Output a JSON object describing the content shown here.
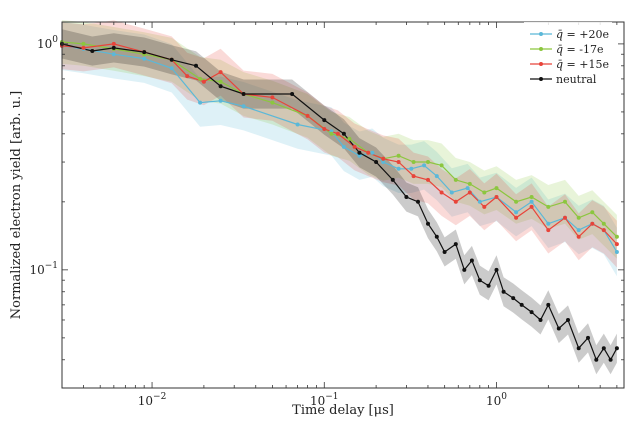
{
  "chart_data": {
    "type": "line",
    "title": "",
    "xlabel": "Time delay [μs]",
    "ylabel": "Normalized electron yield [arb. u.]",
    "xscale": "log",
    "yscale": "log",
    "xlim": [
      0.003,
      5.5
    ],
    "ylim": [
      0.03,
      1.25
    ],
    "grid": false,
    "legend": "top-right",
    "x_ticks": [
      {
        "value": 0.01,
        "base": "10",
        "exp": "−2"
      },
      {
        "value": 0.1,
        "base": "10",
        "exp": "−1"
      },
      {
        "value": 1,
        "base": "10",
        "exp": "0"
      }
    ],
    "y_ticks": [
      {
        "value": 0.1,
        "base": "10",
        "exp": "−1"
      },
      {
        "value": 1,
        "base": "10",
        "exp": "0"
      }
    ],
    "series": [
      {
        "name": "q̄ = +20e",
        "legend_label": {
          "symbol": "q̄",
          "text": " = +20e"
        },
        "color": "#5bb8d8",
        "band": 0.28,
        "x": [
          0.003,
          0.004,
          0.006,
          0.009,
          0.013,
          0.019,
          0.025,
          0.034,
          0.07,
          0.11,
          0.13,
          0.16,
          0.19,
          0.22,
          0.27,
          0.32,
          0.38,
          0.45,
          0.55,
          0.68,
          0.8,
          1.0,
          1.3,
          1.6,
          2.0,
          2.5,
          3.0,
          3.6,
          4.2,
          5.0
        ],
        "y": [
          0.98,
          0.95,
          0.9,
          0.86,
          0.78,
          0.55,
          0.56,
          0.53,
          0.44,
          0.41,
          0.35,
          0.32,
          0.33,
          0.3,
          0.28,
          0.28,
          0.29,
          0.26,
          0.22,
          0.23,
          0.2,
          0.21,
          0.18,
          0.2,
          0.16,
          0.17,
          0.15,
          0.16,
          0.15,
          0.12
        ]
      },
      {
        "name": "q̄ = -17e",
        "legend_label": {
          "symbol": "q̄",
          "text": " = -17e"
        },
        "color": "#8cc63f",
        "band": 0.25,
        "x": [
          0.003,
          0.004,
          0.006,
          0.009,
          0.013,
          0.019,
          0.025,
          0.034,
          0.05,
          0.08,
          0.11,
          0.14,
          0.18,
          0.22,
          0.27,
          0.33,
          0.4,
          0.48,
          0.58,
          0.7,
          0.85,
          1.0,
          1.3,
          1.6,
          2.0,
          2.5,
          3.0,
          3.6,
          4.2,
          5.0
        ],
        "y": [
          1.02,
          1.0,
          0.95,
          0.9,
          0.85,
          0.7,
          0.68,
          0.6,
          0.55,
          0.48,
          0.4,
          0.38,
          0.33,
          0.31,
          0.32,
          0.3,
          0.3,
          0.29,
          0.25,
          0.24,
          0.22,
          0.23,
          0.2,
          0.21,
          0.19,
          0.2,
          0.17,
          0.18,
          0.16,
          0.14
        ]
      },
      {
        "name": "q̄ = +15e",
        "legend_label": {
          "symbol": "q̄",
          "text": " = +15e"
        },
        "color": "#e8443a",
        "band": 0.27,
        "x": [
          0.003,
          0.004,
          0.006,
          0.009,
          0.013,
          0.016,
          0.02,
          0.025,
          0.034,
          0.05,
          0.08,
          0.1,
          0.12,
          0.15,
          0.18,
          0.22,
          0.27,
          0.33,
          0.4,
          0.48,
          0.58,
          0.7,
          0.85,
          1.0,
          1.3,
          1.6,
          2.0,
          2.5,
          3.0,
          3.6,
          4.2,
          5.0
        ],
        "y": [
          0.98,
          0.96,
          1.0,
          0.92,
          0.85,
          0.72,
          0.68,
          0.75,
          0.6,
          0.58,
          0.48,
          0.42,
          0.4,
          0.35,
          0.33,
          0.31,
          0.3,
          0.26,
          0.25,
          0.22,
          0.2,
          0.22,
          0.19,
          0.21,
          0.17,
          0.19,
          0.15,
          0.17,
          0.14,
          0.16,
          0.15,
          0.13
        ]
      },
      {
        "name": "neutral",
        "legend_label": {
          "symbol": "",
          "text": "neutral"
        },
        "color": "#111111",
        "band": 0.16,
        "x": [
          0.003,
          0.0045,
          0.006,
          0.009,
          0.013,
          0.018,
          0.025,
          0.034,
          0.065,
          0.1,
          0.13,
          0.16,
          0.2,
          0.25,
          0.3,
          0.35,
          0.4,
          0.45,
          0.5,
          0.58,
          0.65,
          0.72,
          0.8,
          0.9,
          1.0,
          1.1,
          1.25,
          1.4,
          1.6,
          1.8,
          2.0,
          2.3,
          2.6,
          3.0,
          3.4,
          3.8,
          4.2,
          4.6,
          5.0
        ],
        "y": [
          1.0,
          0.93,
          0.96,
          0.92,
          0.85,
          0.8,
          0.65,
          0.6,
          0.6,
          0.46,
          0.4,
          0.33,
          0.3,
          0.25,
          0.21,
          0.2,
          0.16,
          0.14,
          0.12,
          0.13,
          0.1,
          0.11,
          0.09,
          0.085,
          0.1,
          0.08,
          0.075,
          0.07,
          0.065,
          0.06,
          0.07,
          0.055,
          0.06,
          0.045,
          0.05,
          0.04,
          0.045,
          0.04,
          0.045
        ]
      }
    ]
  }
}
